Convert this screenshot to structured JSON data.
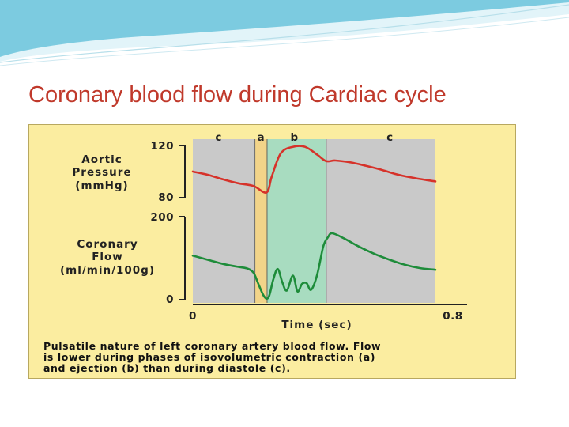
{
  "slide": {
    "title": "Coronary blood flow during Cardiac cycle"
  },
  "colors": {
    "title": "#c0392b",
    "panel_background": "#fbeda0",
    "plot_background": "#c9c9c9",
    "aortic_line": "#d6322a",
    "coronary_line": "#1e8c3a",
    "band_a": "#f2d489",
    "band_b": "#a8dcc0"
  },
  "chart_data": {
    "type": "line",
    "xlabel": "Time (sec)",
    "xlim": [
      0,
      0.8
    ],
    "x_tick_labels": [
      "0",
      "0.8"
    ],
    "phases": [
      {
        "label": "c",
        "start": 0.0,
        "end": 0.205
      },
      {
        "label": "a",
        "start": 0.205,
        "end": 0.245
      },
      {
        "label": "b",
        "start": 0.245,
        "end": 0.44
      },
      {
        "label": "c",
        "start": 0.44,
        "end": 0.8
      }
    ],
    "panels": [
      {
        "ylabel_lines": [
          "Aortic",
          "Pressure",
          "(mmHg)"
        ],
        "ylim": [
          80,
          120
        ],
        "y_tick_labels": [
          "120",
          "80"
        ],
        "series": [
          {
            "color": "#d6322a",
            "points": [
              [
                0.0,
                100
              ],
              [
                0.05,
                97.5
              ],
              [
                0.1,
                94
              ],
              [
                0.15,
                91
              ],
              [
                0.2,
                89
              ],
              [
                0.243,
                84
              ],
              [
                0.26,
                96
              ],
              [
                0.29,
                114
              ],
              [
                0.33,
                119
              ],
              [
                0.37,
                119
              ],
              [
                0.41,
                113
              ],
              [
                0.44,
                108
              ],
              [
                0.47,
                108.5
              ],
              [
                0.52,
                107
              ],
              [
                0.57,
                104.5
              ],
              [
                0.62,
                101.5
              ],
              [
                0.67,
                98
              ],
              [
                0.72,
                95.5
              ],
              [
                0.77,
                93.5
              ],
              [
                0.8,
                92.5
              ]
            ]
          }
        ]
      },
      {
        "ylabel_lines": [
          "Coronary",
          "Flow",
          "(ml/min/100g)"
        ],
        "ylim": [
          0,
          200
        ],
        "y_tick_labels": [
          "200",
          "0"
        ],
        "series": [
          {
            "color": "#1e8c3a",
            "points": [
              [
                0.0,
                106
              ],
              [
                0.05,
                96
              ],
              [
                0.1,
                86
              ],
              [
                0.15,
                79
              ],
              [
                0.18,
                75
              ],
              [
                0.2,
                65
              ],
              [
                0.215,
                40
              ],
              [
                0.235,
                8
              ],
              [
                0.25,
                6
              ],
              [
                0.265,
                48
              ],
              [
                0.28,
                74
              ],
              [
                0.295,
                42
              ],
              [
                0.31,
                22
              ],
              [
                0.33,
                58
              ],
              [
                0.345,
                20
              ],
              [
                0.36,
                38
              ],
              [
                0.375,
                40
              ],
              [
                0.39,
                24
              ],
              [
                0.41,
                60
              ],
              [
                0.43,
                128
              ],
              [
                0.445,
                150
              ],
              [
                0.46,
                160
              ],
              [
                0.5,
                147
              ],
              [
                0.55,
                127
              ],
              [
                0.6,
                110
              ],
              [
                0.65,
                96
              ],
              [
                0.7,
                84
              ],
              [
                0.75,
                76
              ],
              [
                0.8,
                72
              ]
            ]
          }
        ]
      }
    ],
    "caption_lines": [
      "Pulsatile nature of left coronary artery blood flow. Flow",
      "is lower during phases of isovolumetric contraction (a)",
      "and ejection (b) than during diastole (c)."
    ]
  }
}
